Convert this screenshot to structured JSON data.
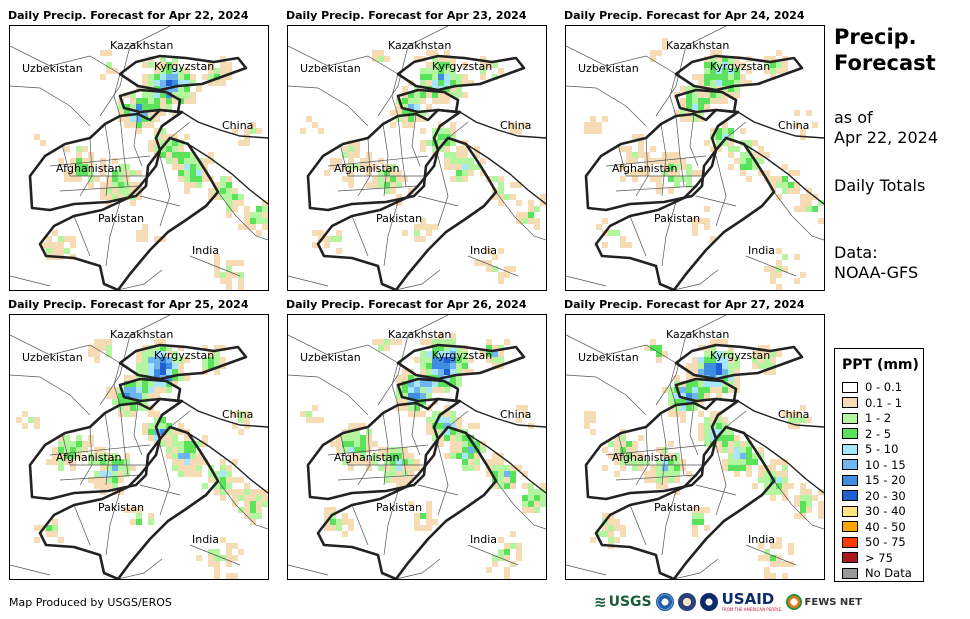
{
  "panels": [
    {
      "title": "Daily Precip. Forecast for Apr 22, 2024",
      "wetness": 1.3
    },
    {
      "title": "Daily Precip. Forecast for Apr 23, 2024",
      "wetness": 1.0
    },
    {
      "title": "Daily Precip. Forecast for Apr 24, 2024",
      "wetness": 1.0
    },
    {
      "title": "Daily Precip. Forecast for Apr 25, 2024",
      "wetness": 1.4
    },
    {
      "title": "Daily Precip. Forecast for Apr 26, 2024",
      "wetness": 1.5
    },
    {
      "title": "Daily Precip. Forecast for Apr 27, 2024",
      "wetness": 1.4
    }
  ],
  "map_labels": {
    "kazakhstan": "Kazakhstan",
    "uzbekistan": "Uzbekistan",
    "kyrgyzstan": "Kyrgyzstan",
    "china": "China",
    "afghanistan": "Afghanistan",
    "pakistan": "Pakistan",
    "india": "India"
  },
  "sidebar": {
    "title_line1": "Precip.",
    "title_line2": "Forecast",
    "asof_line1": "as of",
    "asof_line2": "Apr 22, 2024",
    "totals": "Daily Totals",
    "data_line1": "Data:",
    "data_line2": "NOAA-GFS"
  },
  "legend": {
    "title": "PPT (mm)",
    "items": [
      {
        "label": "0 - 0.1",
        "color": "#ffffff"
      },
      {
        "label": "0.1 - 1",
        "color": "#f5dcb4"
      },
      {
        "label": "1 - 2",
        "color": "#b4f5a0"
      },
      {
        "label": "2 - 5",
        "color": "#5ae35a"
      },
      {
        "label": "5 - 10",
        "color": "#a8e6ff"
      },
      {
        "label": "10 - 15",
        "color": "#6fb6f0"
      },
      {
        "label": "15 - 20",
        "color": "#3d8de0"
      },
      {
        "label": "20 - 30",
        "color": "#1f5fd6"
      },
      {
        "label": "30 - 40",
        "color": "#ffe680"
      },
      {
        "label": "40 - 50",
        "color": "#ffa500"
      },
      {
        "label": "50 - 75",
        "color": "#ff3c00"
      },
      {
        "label": "> 75",
        "color": "#a8171b"
      },
      {
        "label": "No Data",
        "color": "#999999"
      }
    ]
  },
  "footer": {
    "credit": "Map Produced by USGS/EROS"
  },
  "logos": {
    "usgs": "USGS",
    "usaid": "USAID",
    "usaid_tagline": "FROM THE AMERICAN PEOPLE",
    "fews": "FEWS NET"
  }
}
